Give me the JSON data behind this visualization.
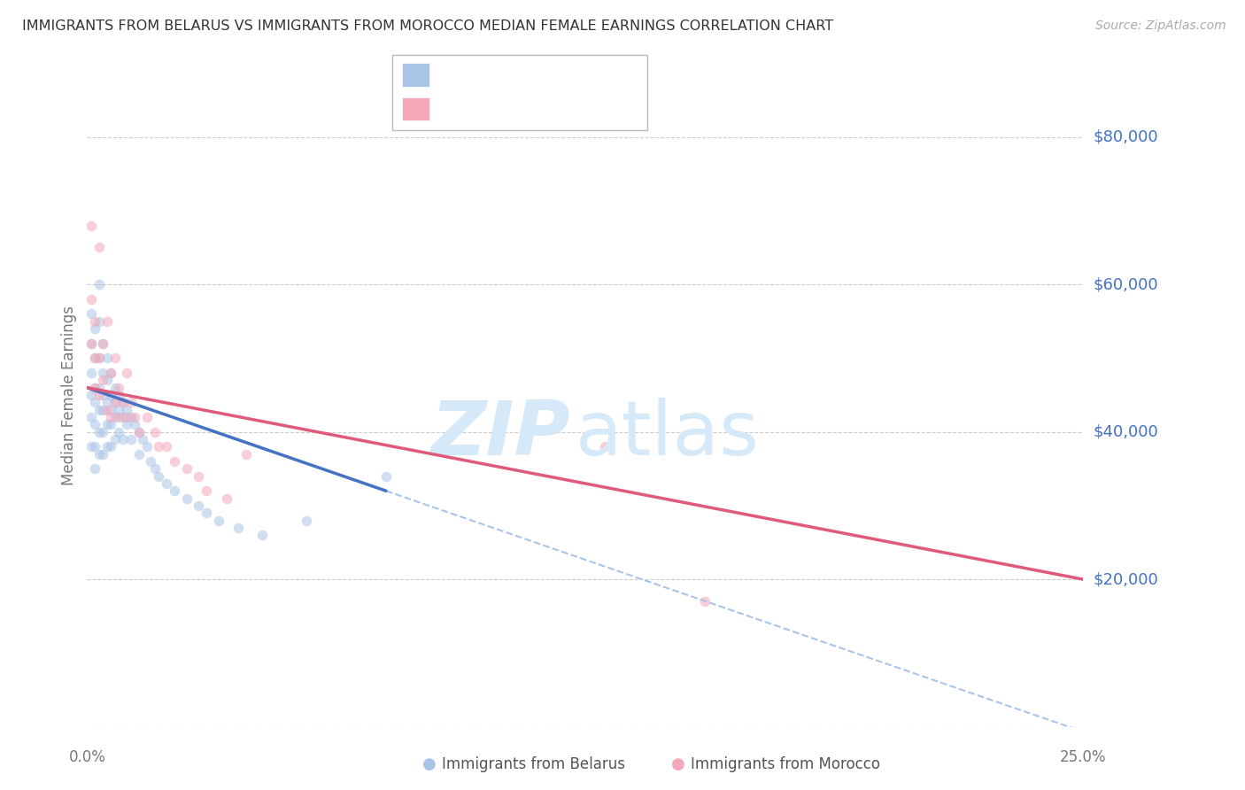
{
  "title": "IMMIGRANTS FROM BELARUS VS IMMIGRANTS FROM MOROCCO MEDIAN FEMALE EARNINGS CORRELATION CHART",
  "source": "Source: ZipAtlas.com",
  "ylabel": "Median Female Earnings",
  "xlim": [
    0.0,
    0.25
  ],
  "ylim": [
    0,
    90000
  ],
  "yticks": [
    0,
    20000,
    40000,
    60000,
    80000
  ],
  "ytick_labels": [
    "",
    "$20,000",
    "$40,000",
    "$60,000",
    "$80,000"
  ],
  "color_belarus": "#aac4e8",
  "color_morocco": "#f4a7b9",
  "color_line_belarus": "#4472c4",
  "color_line_morocco": "#e05a7a",
  "color_axis_labels": "#4472c4",
  "color_title": "#333333",
  "watermark_color": "#d6e9f8",
  "background_color": "#ffffff",
  "grid_color": "#cccccc",
  "scatter_alpha": 0.55,
  "scatter_size": 70,
  "belarus_x": [
    0.001,
    0.001,
    0.001,
    0.001,
    0.001,
    0.001,
    0.002,
    0.002,
    0.002,
    0.002,
    0.002,
    0.002,
    0.002,
    0.003,
    0.003,
    0.003,
    0.003,
    0.003,
    0.003,
    0.003,
    0.004,
    0.004,
    0.004,
    0.004,
    0.004,
    0.004,
    0.005,
    0.005,
    0.005,
    0.005,
    0.005,
    0.006,
    0.006,
    0.006,
    0.006,
    0.006,
    0.007,
    0.007,
    0.007,
    0.007,
    0.008,
    0.008,
    0.008,
    0.009,
    0.009,
    0.009,
    0.01,
    0.01,
    0.011,
    0.011,
    0.012,
    0.013,
    0.013,
    0.014,
    0.015,
    0.016,
    0.017,
    0.018,
    0.02,
    0.022,
    0.025,
    0.028,
    0.03,
    0.033,
    0.038,
    0.044,
    0.055,
    0.075
  ],
  "belarus_y": [
    56000,
    52000,
    48000,
    45000,
    42000,
    38000,
    54000,
    50000,
    46000,
    44000,
    41000,
    38000,
    35000,
    60000,
    55000,
    50000,
    46000,
    43000,
    40000,
    37000,
    52000,
    48000,
    45000,
    43000,
    40000,
    37000,
    50000,
    47000,
    44000,
    41000,
    38000,
    48000,
    45000,
    43000,
    41000,
    38000,
    46000,
    44000,
    42000,
    39000,
    45000,
    43000,
    40000,
    44000,
    42000,
    39000,
    43000,
    41000,
    42000,
    39000,
    41000,
    40000,
    37000,
    39000,
    38000,
    36000,
    35000,
    34000,
    33000,
    32000,
    31000,
    30000,
    29000,
    28000,
    27000,
    26000,
    28000,
    34000
  ],
  "morocco_x": [
    0.001,
    0.001,
    0.001,
    0.002,
    0.002,
    0.002,
    0.003,
    0.003,
    0.003,
    0.004,
    0.004,
    0.005,
    0.005,
    0.006,
    0.006,
    0.007,
    0.007,
    0.008,
    0.008,
    0.009,
    0.01,
    0.01,
    0.011,
    0.012,
    0.013,
    0.015,
    0.017,
    0.018,
    0.02,
    0.022,
    0.025,
    0.028,
    0.03,
    0.035,
    0.04,
    0.13,
    0.155
  ],
  "morocco_y": [
    68000,
    58000,
    52000,
    55000,
    50000,
    46000,
    65000,
    50000,
    45000,
    52000,
    47000,
    55000,
    43000,
    48000,
    42000,
    50000,
    44000,
    46000,
    42000,
    44000,
    48000,
    42000,
    44000,
    42000,
    40000,
    42000,
    40000,
    38000,
    38000,
    36000,
    35000,
    34000,
    32000,
    31000,
    37000,
    38000,
    17000
  ],
  "belarus_line_x0": 0.0,
  "belarus_line_x1": 0.075,
  "belarus_line_y0": 46000,
  "belarus_line_y1": 32000,
  "morocco_line_x0": 0.0,
  "morocco_line_x1": 0.25,
  "morocco_line_y0": 46000,
  "morocco_line_y1": 20000
}
